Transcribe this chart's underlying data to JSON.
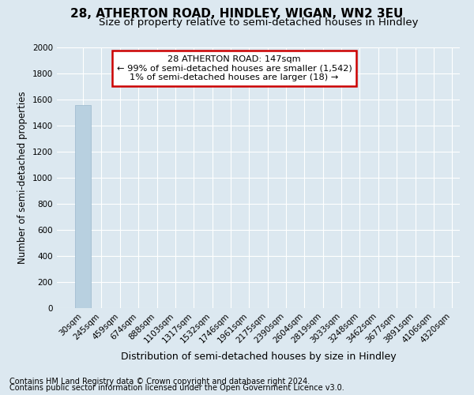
{
  "title": "28, ATHERTON ROAD, HINDLEY, WIGAN, WN2 3EU",
  "subtitle": "Size of property relative to semi-detached houses in Hindley",
  "xlabel": "Distribution of semi-detached houses by size in Hindley",
  "ylabel": "Number of semi-detached properties",
  "footnote1": "Contains HM Land Registry data © Crown copyright and database right 2024.",
  "footnote2": "Contains public sector information licensed under the Open Government Licence v3.0.",
  "bar_values": [
    1560,
    2,
    0,
    0,
    0,
    0,
    0,
    0,
    0,
    0,
    0,
    0,
    0,
    0,
    0,
    0,
    0,
    0,
    0,
    0
  ],
  "bar_color": "#b8d0e0",
  "bar_edge_color": "#9ab8cc",
  "x_labels": [
    "30sqm",
    "245sqm",
    "459sqm",
    "674sqm",
    "888sqm",
    "1103sqm",
    "1317sqm",
    "1532sqm",
    "1746sqm",
    "1961sqm",
    "2175sqm",
    "2390sqm",
    "2604sqm",
    "2819sqm",
    "3033sqm",
    "3248sqm",
    "3462sqm",
    "3677sqm",
    "3891sqm",
    "4106sqm",
    "4320sqm"
  ],
  "ylim": [
    0,
    2000
  ],
  "yticks": [
    0,
    200,
    400,
    600,
    800,
    1000,
    1200,
    1400,
    1600,
    1800,
    2000
  ],
  "annotation_title": "28 ATHERTON ROAD: 147sqm",
  "annotation_line1": "← 99% of semi-detached houses are smaller (1,542)",
  "annotation_line2": "1% of semi-detached houses are larger (18) →",
  "annotation_box_color": "#ffffff",
  "annotation_border_color": "#cc0000",
  "background_color": "#dce8f0",
  "plot_bg_color": "#dce8f0",
  "grid_color": "#ffffff",
  "title_fontsize": 11,
  "subtitle_fontsize": 9.5,
  "axis_label_fontsize": 8.5,
  "tick_fontsize": 7.5,
  "footnote_fontsize": 7
}
